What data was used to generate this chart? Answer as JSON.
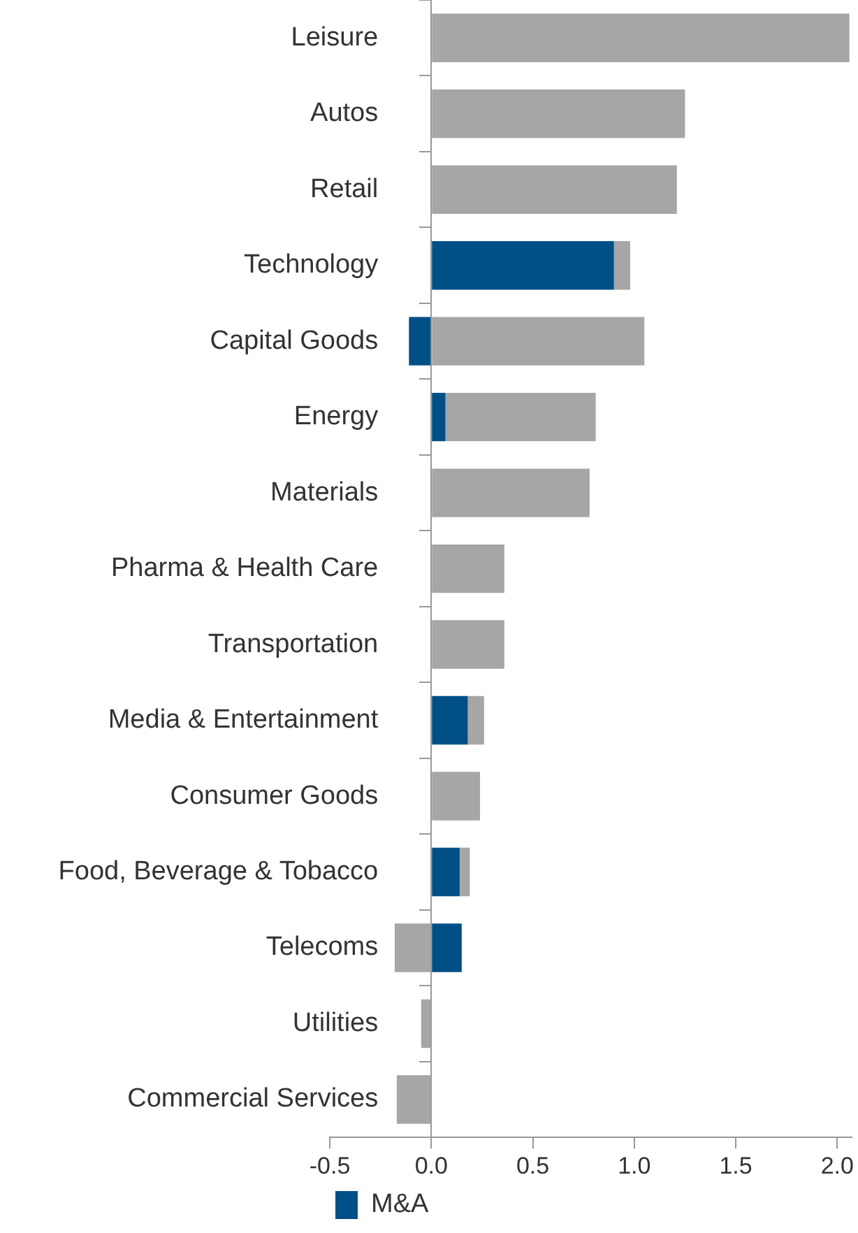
{
  "chart_data": {
    "type": "bar",
    "orientation": "horizontal",
    "stacked": true,
    "categories": [
      "Leisure",
      "Autos",
      "Retail",
      "Technology",
      "Capital Goods",
      "Energy",
      "Materials",
      "Pharma & Health Care",
      "Transportation",
      "Media & Entertainment",
      "Consumer Goods",
      "Food, Beverage & Tobacco",
      "Telecoms",
      "Utilities",
      "Commercial Services"
    ],
    "series": [
      {
        "name": "M&A",
        "color": "#004f86",
        "values": [
          null,
          null,
          null,
          0.9,
          -0.11,
          0.07,
          null,
          null,
          null,
          0.18,
          null,
          0.14,
          0.15,
          null,
          null
        ]
      },
      {
        "color": "#a6a6a6",
        "values": [
          2.06,
          1.25,
          1.21,
          0.08,
          1.05,
          0.74,
          0.78,
          0.36,
          0.36,
          0.08,
          0.24,
          0.05,
          -0.18,
          -0.05,
          -0.17
        ]
      }
    ],
    "xlim": [
      -0.5,
      2.07
    ],
    "xticks": [
      -0.5,
      {
        "value": 0,
        "label": "0.0"
      },
      0.5,
      {
        "value": 1,
        "label": "1.0"
      },
      1.5,
      {
        "value": 2,
        "label": "2.0"
      }
    ],
    "grid": false,
    "legend": "bottom left"
  }
}
